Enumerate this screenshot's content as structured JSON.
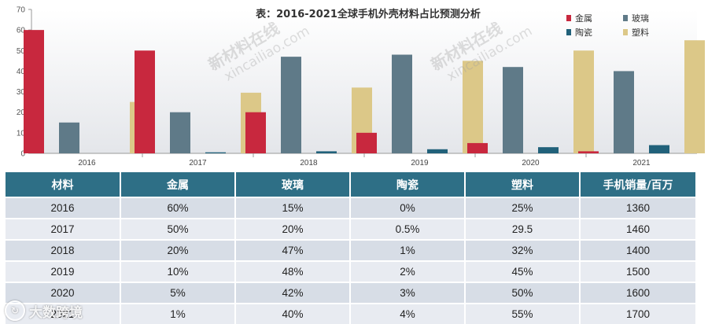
{
  "chart_data": {
    "type": "bar",
    "title": "表：2016-2021全球手机外壳材料占比预测分析",
    "categories": [
      "2016",
      "2017",
      "2018",
      "2019",
      "2020",
      "2021"
    ],
    "series": [
      {
        "name": "金属",
        "color": "#c8283e",
        "values": [
          60,
          50,
          20,
          10,
          5,
          1
        ]
      },
      {
        "name": "玻璃",
        "color": "#5f7a88",
        "values": [
          15,
          20,
          47,
          48,
          42,
          40
        ]
      },
      {
        "name": "陶瓷",
        "color": "#21617a",
        "values": [
          0,
          0.5,
          1,
          2,
          3,
          4
        ]
      },
      {
        "name": "塑料",
        "color": "#dcc888",
        "values": [
          25,
          29.5,
          32,
          45,
          50,
          55
        ]
      }
    ],
    "ylim": [
      0,
      70
    ],
    "yticks": [
      0,
      10,
      20,
      30,
      40,
      50,
      60,
      70
    ],
    "grid": false,
    "legend_position": "top-right"
  },
  "table": {
    "headers": [
      "材料",
      "金属",
      "玻璃",
      "陶瓷",
      "塑料",
      "手机销量/百万"
    ],
    "rows": [
      [
        "2016",
        "60%",
        "15%",
        "0%",
        "25%",
        "1360"
      ],
      [
        "2017",
        "50%",
        "20%",
        "0.5%",
        "29.5",
        "1460"
      ],
      [
        "2018",
        "20%",
        "47%",
        "1%",
        "32%",
        "1400"
      ],
      [
        "2019",
        "10%",
        "48%",
        "2%",
        "45%",
        "1500"
      ],
      [
        "2020",
        "5%",
        "42%",
        "3%",
        "50%",
        "1600"
      ],
      [
        "2021",
        "1%",
        "40%",
        "4%",
        "55%",
        "1700"
      ]
    ]
  },
  "watermark": {
    "text": "新材料在线",
    "url": "xincailiao.com"
  },
  "brand": {
    "text": "大数跨境"
  }
}
